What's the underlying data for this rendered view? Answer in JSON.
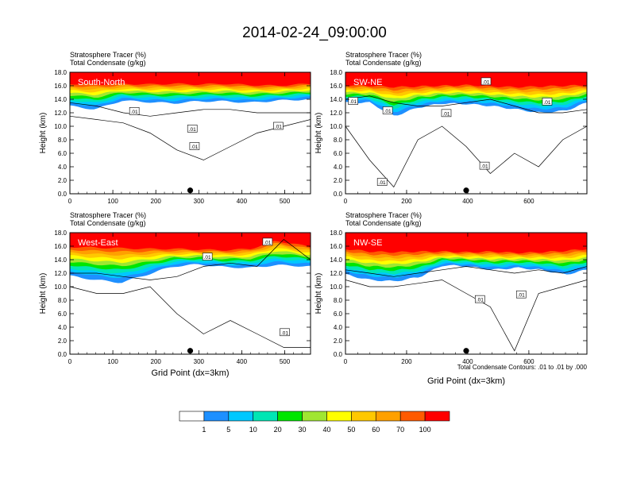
{
  "title": "2014-02-24_09:00:00",
  "colors": {
    "levels": [
      "#ffffff",
      "#1e90ff",
      "#00c8ff",
      "#00e6b4",
      "#00e600",
      "#a0e632",
      "#ffff00",
      "#ffc800",
      "#ffa000",
      "#ff5a00",
      "#ff0000"
    ],
    "contour": "#000000",
    "panel_label_text": "#ffffff"
  },
  "colorbar": {
    "labels": [
      "1",
      "5",
      "10",
      "20",
      "30",
      "40",
      "50",
      "60",
      "70",
      "100"
    ]
  },
  "footnote": "Total Condensate Contours: .01 to .01 by .000",
  "chart_data": [
    {
      "type": "heatmap",
      "panel_label": "South-North",
      "header_lines": [
        "Stratosphere Tracer   (%)",
        "Total Condensate   (g/kg)"
      ],
      "ylabel": "Height (km)",
      "xlabel": "",
      "xlim": [
        0,
        560
      ],
      "ylim": [
        0,
        18
      ],
      "x_ticks": [
        "0",
        "100",
        "200",
        "300",
        "400",
        "500"
      ],
      "x_tick_values": [
        0,
        100,
        200,
        300,
        400,
        500
      ],
      "y_ticks": [
        "0.0",
        "2.0",
        "4.0",
        "6.0",
        "8.0",
        "10.0",
        "12.0",
        "14.0",
        "16.0",
        "18.0"
      ],
      "y_tick_values": [
        0,
        2,
        4,
        6,
        8,
        10,
        12,
        14,
        16,
        18
      ],
      "marker_x": 280,
      "contour_labels": [
        ".01",
        ".01",
        ".01",
        ".01"
      ],
      "contour_label_points": [
        [
          150,
          12.2
        ],
        [
          285,
          9.6
        ],
        [
          485,
          10.0
        ],
        [
          290,
          7.0
        ]
      ],
      "tracer_profile": {
        "x": [
          0,
          60,
          120,
          180,
          240,
          300,
          360,
          420,
          480,
          560
        ],
        "height_100pct": [
          16.3,
          16.2,
          16.3,
          16.2,
          16.3,
          16.2,
          16.3,
          16.1,
          16.0,
          16.3
        ],
        "height_1pct": [
          13.0,
          12.5,
          13.8,
          13.6,
          13.4,
          13.7,
          13.7,
          13.5,
          13.8,
          14.0
        ]
      },
      "cloud_top_km": [
        13.5,
        13.0,
        12.0,
        11.5,
        12.0,
        12.5,
        12.5,
        12.0,
        12.0,
        12.0
      ],
      "cloud_base_km": [
        11.5,
        11.0,
        10.5,
        9.0,
        6.5,
        5.0,
        7.0,
        9.0,
        10.0,
        11.0
      ]
    },
    {
      "type": "heatmap",
      "panel_label": "SW-NE",
      "header_lines": [
        "Stratosphere Tracer   (%)",
        "Total Condensate   (g/kg)"
      ],
      "ylabel": "Height (km)",
      "xlabel": "",
      "xlim": [
        0,
        790
      ],
      "ylim": [
        0,
        18
      ],
      "x_ticks": [
        "0",
        "200",
        "400",
        "600"
      ],
      "x_tick_values": [
        0,
        200,
        400,
        600
      ],
      "y_ticks": [
        "0.0",
        "2.0",
        "4.0",
        "6.0",
        "8.0",
        "10.0",
        "12.0",
        "14.0",
        "16.0",
        "18.0"
      ],
      "y_tick_values": [
        0,
        2,
        4,
        6,
        8,
        10,
        12,
        14,
        16,
        18
      ],
      "marker_x": 395,
      "contour_labels": [
        ".01",
        ".01",
        ".01",
        ".01",
        ".01",
        ".01",
        ".01"
      ],
      "contour_label_points": [
        [
          25,
          13.7
        ],
        [
          138,
          12.3
        ],
        [
          460,
          16.6
        ],
        [
          660,
          13.6
        ],
        [
          330,
          11.9
        ],
        [
          455,
          4.1
        ],
        [
          120,
          1.7
        ]
      ],
      "tracer_profile": {
        "x": [
          0,
          80,
          160,
          240,
          320,
          400,
          480,
          560,
          640,
          720,
          790
        ],
        "height_100pct": [
          16.1,
          16.0,
          15.8,
          15.9,
          16.0,
          16.1,
          15.9,
          15.8,
          15.9,
          16.0,
          16.1
        ],
        "height_1pct": [
          13.5,
          13.5,
          11.5,
          12.8,
          13.4,
          13.3,
          13.0,
          12.5,
          12.0,
          12.3,
          13.5
        ]
      },
      "cloud_top_km": [
        14.0,
        14.5,
        13.5,
        13.0,
        13.0,
        13.5,
        14.0,
        13.0,
        12.0,
        12.0,
        12.5
      ],
      "cloud_base_km": [
        10.0,
        5.0,
        1.0,
        8.0,
        10.0,
        7.0,
        3.0,
        6.0,
        4.0,
        8.0,
        10.0
      ]
    },
    {
      "type": "heatmap",
      "panel_label": "West-East",
      "header_lines": [
        "Stratosphere Tracer   (%)",
        "Total Condensate   (g/kg)"
      ],
      "ylabel": "Height (km)",
      "xlabel": "Grid Point (dx=3km)",
      "xlim": [
        0,
        560
      ],
      "ylim": [
        0,
        18
      ],
      "x_ticks": [
        "0",
        "100",
        "200",
        "300",
        "400",
        "500"
      ],
      "x_tick_values": [
        0,
        100,
        200,
        300,
        400,
        500
      ],
      "y_ticks": [
        "0.0",
        "2.0",
        "4.0",
        "6.0",
        "8.0",
        "10.0",
        "12.0",
        "14.0",
        "16.0",
        "18.0"
      ],
      "y_tick_values": [
        0,
        2,
        4,
        6,
        8,
        10,
        12,
        14,
        16,
        18
      ],
      "marker_x": 280,
      "contour_labels": [
        ".01",
        ".01",
        ".01"
      ],
      "contour_label_points": [
        [
          320,
          14.4
        ],
        [
          460,
          16.6
        ],
        [
          500,
          3.2
        ]
      ],
      "tracer_profile": {
        "x": [
          0,
          60,
          120,
          180,
          240,
          300,
          360,
          420,
          480,
          560
        ],
        "height_100pct": [
          15.9,
          15.8,
          15.7,
          15.6,
          15.6,
          15.5,
          15.4,
          15.6,
          16.8,
          15.9
        ],
        "height_1pct": [
          11.6,
          11.0,
          10.6,
          11.8,
          13.0,
          13.3,
          12.9,
          12.8,
          13.2,
          13.0
        ]
      },
      "cloud_top_km": [
        12.0,
        12.0,
        11.5,
        11.0,
        11.5,
        13.0,
        13.5,
        13.0,
        17.0,
        14.0
      ],
      "cloud_base_km": [
        10.0,
        9.0,
        9.0,
        10.0,
        6.0,
        3.0,
        5.0,
        3.0,
        1.0,
        1.0
      ]
    },
    {
      "type": "heatmap",
      "panel_label": "NW-SE",
      "header_lines": [
        "Stratosphere Tracer   (%)",
        "Total Condensate   (g/kg)"
      ],
      "ylabel": "Height (km)",
      "xlabel": "Grid Point (dx=3km)",
      "xlim": [
        0,
        790
      ],
      "ylim": [
        0,
        18
      ],
      "x_ticks": [
        "0",
        "200",
        "400",
        "600"
      ],
      "x_tick_values": [
        0,
        200,
        400,
        600
      ],
      "y_ticks": [
        "0.0",
        "2.0",
        "4.0",
        "6.0",
        "8.0",
        "10.0",
        "12.0",
        "14.0",
        "16.0",
        "18.0"
      ],
      "y_tick_values": [
        0,
        2,
        4,
        6,
        8,
        10,
        12,
        14,
        16,
        18
      ],
      "marker_x": 395,
      "contour_labels": [
        ".01",
        ".01"
      ],
      "contour_label_points": [
        [
          440,
          8.1
        ],
        [
          575,
          8.8
        ]
      ],
      "tracer_profile": {
        "x": [
          0,
          80,
          160,
          240,
          320,
          400,
          480,
          560,
          640,
          720,
          790
        ],
        "height_100pct": [
          15.6,
          15.2,
          15.1,
          15.2,
          15.2,
          15.1,
          15.2,
          15.0,
          15.1,
          15.3,
          15.6
        ],
        "height_1pct": [
          11.8,
          11.0,
          10.8,
          11.4,
          13.2,
          13.0,
          12.5,
          12.8,
          12.5,
          11.8,
          12.5
        ]
      },
      "cloud_top_km": [
        12.5,
        12.0,
        11.5,
        12.0,
        12.5,
        13.0,
        12.5,
        12.0,
        12.5,
        12.0,
        13.0
      ],
      "cloud_base_km": [
        11.0,
        10.0,
        10.0,
        10.5,
        11.0,
        9.0,
        7.0,
        0.5,
        9.0,
        10.0,
        11.0
      ]
    }
  ]
}
